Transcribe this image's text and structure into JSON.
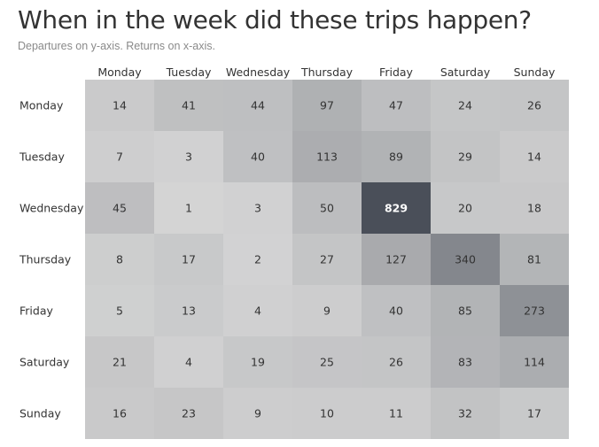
{
  "title": "When in the week did these trips happen?",
  "subtitle": "Departures on y-axis. Returns on x-axis.",
  "chart_data": {
    "type": "heatmap",
    "title": "When in the week did these trips happen?",
    "subtitle": "Departures on y-axis. Returns on x-axis.",
    "x_categories": [
      "Monday",
      "Tuesday",
      "Wednesday",
      "Thursday",
      "Friday",
      "Saturday",
      "Sunday"
    ],
    "y_categories": [
      "Monday",
      "Tuesday",
      "Wednesday",
      "Thursday",
      "Friday",
      "Saturday",
      "Sunday"
    ],
    "values": [
      [
        14,
        41,
        44,
        97,
        47,
        24,
        26
      ],
      [
        7,
        3,
        40,
        113,
        89,
        29,
        14
      ],
      [
        45,
        1,
        3,
        50,
        829,
        20,
        18
      ],
      [
        8,
        17,
        2,
        27,
        127,
        340,
        81
      ],
      [
        5,
        13,
        4,
        9,
        40,
        85,
        273
      ],
      [
        21,
        4,
        19,
        25,
        26,
        83,
        114
      ],
      [
        16,
        23,
        9,
        10,
        11,
        32,
        17
      ]
    ],
    "x_axis_position": "top",
    "grid": false,
    "legend": "none",
    "colors": {
      "low": "#d6d6d6",
      "high": "#4a4f59",
      "text_dark": "#333333",
      "text_light": "#ffffff"
    }
  }
}
